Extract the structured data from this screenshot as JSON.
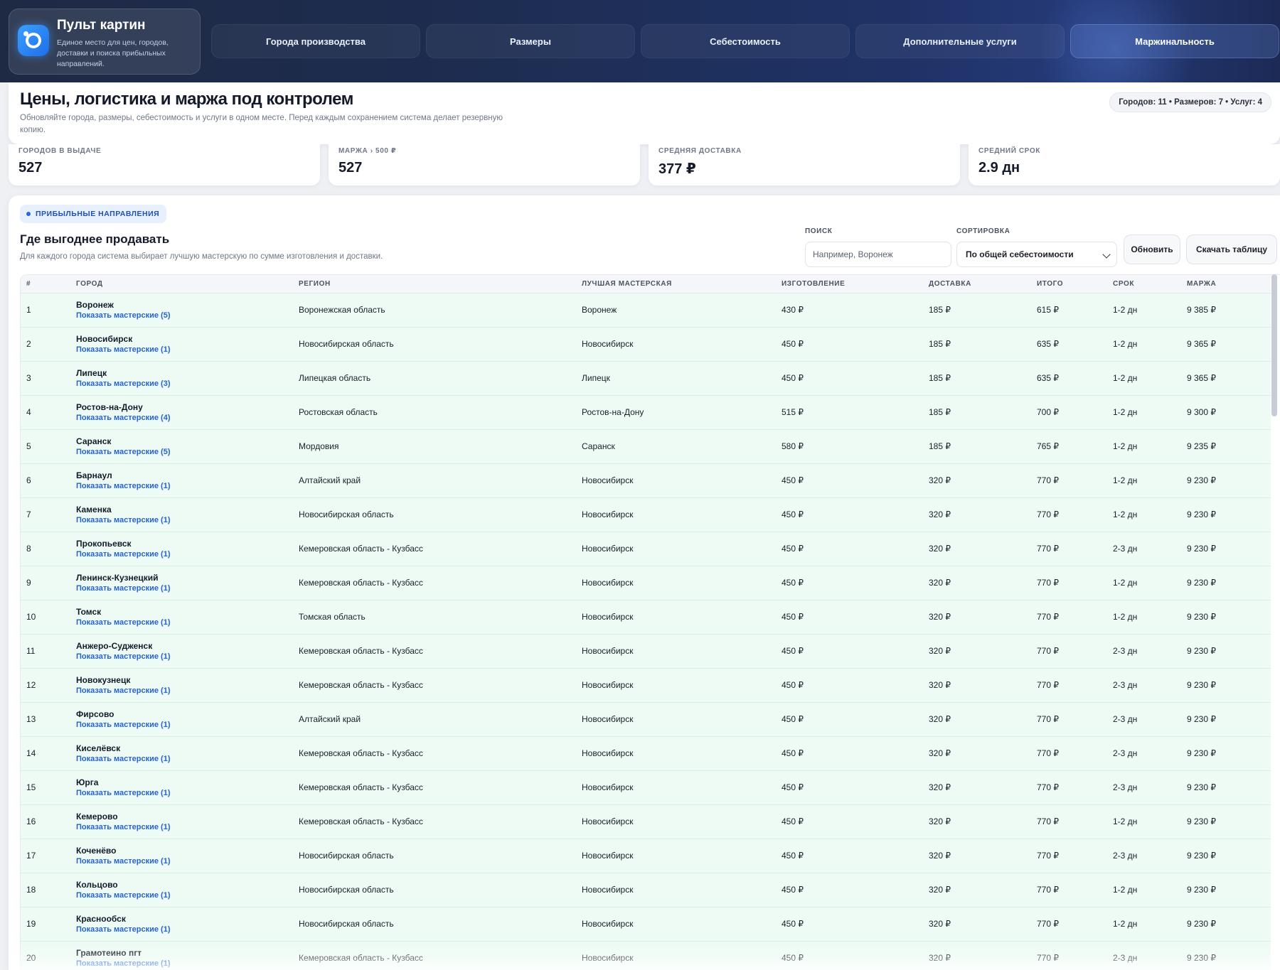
{
  "brand": {
    "title": "Пульт картин",
    "subtitle": "Единое место для цен, городов, доставки и поиска прибыльных направлений."
  },
  "nav": {
    "tabs": [
      {
        "label": "Города производства",
        "active": false
      },
      {
        "label": "Размеры",
        "active": false
      },
      {
        "label": "Себестоимость",
        "active": false
      },
      {
        "label": "Дополнительные услуги",
        "active": false
      },
      {
        "label": "Маржинальность",
        "active": true
      }
    ]
  },
  "hero": {
    "title": "Цены, логистика и маржа под контролем",
    "subtitle": "Обновляйте города, размеры, себестоимость и услуги в одном месте. Перед каждым сохранением система делает резервную копию.",
    "summary": "Городов: 11 • Размеров: 7 • Услуг: 4"
  },
  "stats": [
    {
      "label": "ГОРОДОВ В ВЫДАЧЕ",
      "value": "527"
    },
    {
      "label": "МАРЖА › 500 ₽",
      "value": "527"
    },
    {
      "label": "СРЕДНЯЯ ДОСТАВКА",
      "value": "377 ₽"
    },
    {
      "label": "СРЕДНИЙ СРОК",
      "value": "2.9 дн"
    }
  ],
  "section": {
    "badge": "ПРИБЫЛЬНЫЕ НАПРАВЛЕНИЯ",
    "title": "Где выгоднее продавать",
    "subtitle": "Для каждого города система выбирает лучшую мастерскую по сумме изготовления и доставки."
  },
  "controls": {
    "search_label": "ПОИСК",
    "search_placeholder": "Например, Воронеж",
    "search_value": "",
    "sort_label": "СОРТИРОВКА",
    "sort_value": "По общей себестоимости",
    "refresh_label": "Обновить",
    "download_label": "Скачать таблицу"
  },
  "accent_colors": {
    "row_bg": "#eefbf4",
    "link": "#2463d6",
    "badge_bg": "#e9f0fd"
  },
  "table": {
    "columns": [
      "#",
      "ГОРОД",
      "РЕГИОН",
      "ЛУЧШАЯ МАСТЕРСКАЯ",
      "ИЗГОТОВЛЕНИЕ",
      "ДОСТАВКА",
      "ИТОГО",
      "СРОК",
      "МАРЖА"
    ],
    "rows": [
      {
        "n": "1",
        "city": "Воронеж",
        "link": "Показать мастерские (5)",
        "region": "Воронежская область",
        "workshop": "Воронеж",
        "make": "430 ₽",
        "delivery": "185 ₽",
        "total": "615 ₽",
        "term": "1-2 дн",
        "margin": "9 385 ₽"
      },
      {
        "n": "2",
        "city": "Новосибирск",
        "link": "Показать мастерские (1)",
        "region": "Новосибирская область",
        "workshop": "Новосибирск",
        "make": "450 ₽",
        "delivery": "185 ₽",
        "total": "635 ₽",
        "term": "1-2 дн",
        "margin": "9 365 ₽"
      },
      {
        "n": "3",
        "city": "Липецк",
        "link": "Показать мастерские (3)",
        "region": "Липецкая область",
        "workshop": "Липецк",
        "make": "450 ₽",
        "delivery": "185 ₽",
        "total": "635 ₽",
        "term": "1-2 дн",
        "margin": "9 365 ₽"
      },
      {
        "n": "4",
        "city": "Ростов-на-Дону",
        "link": "Показать мастерские (4)",
        "region": "Ростовская область",
        "workshop": "Ростов-на-Дону",
        "make": "515 ₽",
        "delivery": "185 ₽",
        "total": "700 ₽",
        "term": "1-2 дн",
        "margin": "9 300 ₽"
      },
      {
        "n": "5",
        "city": "Саранск",
        "link": "Показать мастерские (5)",
        "region": "Мордовия",
        "workshop": "Саранск",
        "make": "580 ₽",
        "delivery": "185 ₽",
        "total": "765 ₽",
        "term": "1-2 дн",
        "margin": "9 235 ₽"
      },
      {
        "n": "6",
        "city": "Барнаул",
        "link": "Показать мастерские (1)",
        "region": "Алтайский край",
        "workshop": "Новосибирск",
        "make": "450 ₽",
        "delivery": "320 ₽",
        "total": "770 ₽",
        "term": "1-2 дн",
        "margin": "9 230 ₽"
      },
      {
        "n": "7",
        "city": "Каменка",
        "link": "Показать мастерские (1)",
        "region": "Новосибирская область",
        "workshop": "Новосибирск",
        "make": "450 ₽",
        "delivery": "320 ₽",
        "total": "770 ₽",
        "term": "1-2 дн",
        "margin": "9 230 ₽"
      },
      {
        "n": "8",
        "city": "Прокопьевск",
        "link": "Показать мастерские (1)",
        "region": "Кемеровская область - Кузбасс",
        "workshop": "Новосибирск",
        "make": "450 ₽",
        "delivery": "320 ₽",
        "total": "770 ₽",
        "term": "2-3 дн",
        "margin": "9 230 ₽"
      },
      {
        "n": "9",
        "city": "Ленинск-Кузнецкий",
        "link": "Показать мастерские (1)",
        "region": "Кемеровская область - Кузбасс",
        "workshop": "Новосибирск",
        "make": "450 ₽",
        "delivery": "320 ₽",
        "total": "770 ₽",
        "term": "1-2 дн",
        "margin": "9 230 ₽"
      },
      {
        "n": "10",
        "city": "Томск",
        "link": "Показать мастерские (1)",
        "region": "Томская область",
        "workshop": "Новосибирск",
        "make": "450 ₽",
        "delivery": "320 ₽",
        "total": "770 ₽",
        "term": "1-2 дн",
        "margin": "9 230 ₽"
      },
      {
        "n": "11",
        "city": "Анжеро-Судженск",
        "link": "Показать мастерские (1)",
        "region": "Кемеровская область - Кузбасс",
        "workshop": "Новосибирск",
        "make": "450 ₽",
        "delivery": "320 ₽",
        "total": "770 ₽",
        "term": "2-3 дн",
        "margin": "9 230 ₽"
      },
      {
        "n": "12",
        "city": "Новокузнецк",
        "link": "Показать мастерские (1)",
        "region": "Кемеровская область - Кузбасс",
        "workshop": "Новосибирск",
        "make": "450 ₽",
        "delivery": "320 ₽",
        "total": "770 ₽",
        "term": "2-3 дн",
        "margin": "9 230 ₽"
      },
      {
        "n": "13",
        "city": "Фирсово",
        "link": "Показать мастерские (1)",
        "region": "Алтайский край",
        "workshop": "Новосибирск",
        "make": "450 ₽",
        "delivery": "320 ₽",
        "total": "770 ₽",
        "term": "2-3 дн",
        "margin": "9 230 ₽"
      },
      {
        "n": "14",
        "city": "Киселёвск",
        "link": "Показать мастерские (1)",
        "region": "Кемеровская область - Кузбасс",
        "workshop": "Новосибирск",
        "make": "450 ₽",
        "delivery": "320 ₽",
        "total": "770 ₽",
        "term": "2-3 дн",
        "margin": "9 230 ₽"
      },
      {
        "n": "15",
        "city": "Юрга",
        "link": "Показать мастерские (1)",
        "region": "Кемеровская область - Кузбасс",
        "workshop": "Новосибирск",
        "make": "450 ₽",
        "delivery": "320 ₽",
        "total": "770 ₽",
        "term": "2-3 дн",
        "margin": "9 230 ₽"
      },
      {
        "n": "16",
        "city": "Кемерово",
        "link": "Показать мастерские (1)",
        "region": "Кемеровская область - Кузбасс",
        "workshop": "Новосибирск",
        "make": "450 ₽",
        "delivery": "320 ₽",
        "total": "770 ₽",
        "term": "1-2 дн",
        "margin": "9 230 ₽"
      },
      {
        "n": "17",
        "city": "Коченёво",
        "link": "Показать мастерские (1)",
        "region": "Новосибирская область",
        "workshop": "Новосибирск",
        "make": "450 ₽",
        "delivery": "320 ₽",
        "total": "770 ₽",
        "term": "2-3 дн",
        "margin": "9 230 ₽"
      },
      {
        "n": "18",
        "city": "Кольцово",
        "link": "Показать мастерские (1)",
        "region": "Новосибирская область",
        "workshop": "Новосибирск",
        "make": "450 ₽",
        "delivery": "320 ₽",
        "total": "770 ₽",
        "term": "1-2 дн",
        "margin": "9 230 ₽"
      },
      {
        "n": "19",
        "city": "Краснообск",
        "link": "Показать мастерские (1)",
        "region": "Новосибирская область",
        "workshop": "Новосибирск",
        "make": "450 ₽",
        "delivery": "320 ₽",
        "total": "770 ₽",
        "term": "1-2 дн",
        "margin": "9 230 ₽"
      },
      {
        "n": "20",
        "city": "Грамотеино пгт",
        "link": "Показать мастерские (1)",
        "region": "Кемеровская область - Кузбасс",
        "workshop": "Новосибирск",
        "make": "450 ₽",
        "delivery": "320 ₽",
        "total": "770 ₽",
        "term": "2-3 дн",
        "margin": "9 230 ₽"
      }
    ]
  }
}
